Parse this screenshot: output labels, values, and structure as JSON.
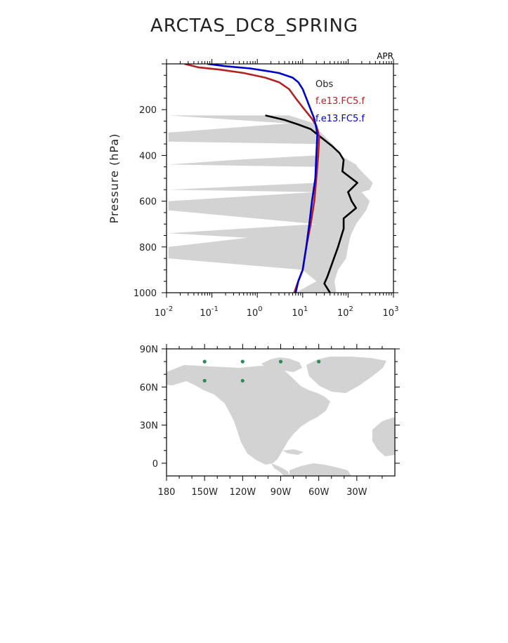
{
  "page_title": "ARCTAS_DC8_SPRING",
  "chart_data": [
    {
      "type": "line",
      "corner_label": "APR",
      "ylabel": "Pressure (hPa)",
      "xlabel": "",
      "x_scale": "log",
      "xlim": [
        0.01,
        1000
      ],
      "ylim": [
        1000,
        0
      ],
      "y_reversed": true,
      "x_tick_values": [
        0.01,
        0.1,
        1,
        10,
        100,
        1000
      ],
      "x_tick_labels": [
        {
          "base": "10",
          "exp": "-2"
        },
        {
          "base": "10",
          "exp": "-1"
        },
        {
          "base": "10",
          "exp": "0"
        },
        {
          "base": "10",
          "exp": "1"
        },
        {
          "base": "10",
          "exp": "2"
        },
        {
          "base": "10",
          "exp": "3"
        }
      ],
      "y_ticks": [
        200,
        400,
        600,
        800,
        1000
      ],
      "legend": [
        "Obs",
        "f.e13.FC5.f",
        "f.e13.FC5.f"
      ],
      "legend_position": "top-right",
      "colors": {
        "obs": "#000000",
        "model1": "#b22222",
        "model2": "#0000cc",
        "range": "#d3d3d3"
      },
      "obs_range": {
        "pressure": [
          225,
          260,
          300,
          340,
          350,
          400,
          420,
          440,
          450,
          520,
          550,
          560,
          600,
          640,
          700,
          740,
          760,
          800,
          850,
          900,
          950,
          1000
        ],
        "min": [
          0.011,
          5,
          0.011,
          0.011,
          20,
          20,
          0.3,
          0.011,
          20,
          20,
          0.011,
          20,
          0.011,
          0.011,
          20,
          0.011,
          0.6,
          0.011,
          0.011,
          10,
          20,
          7
        ],
        "max": [
          5,
          18,
          25,
          40,
          45,
          70,
          100,
          150,
          160,
          350,
          300,
          200,
          300,
          250,
          150,
          120,
          110,
          100,
          90,
          60,
          50,
          55
        ]
      },
      "series": [
        {
          "name": "Obs",
          "pressure": [
            225,
            245,
            265,
            285,
            305,
            360,
            390,
            420,
            470,
            520,
            560,
            600,
            630,
            675,
            720,
            800,
            930,
            960,
            1000
          ],
          "values": [
            1.5,
            4,
            8,
            15,
            20,
            45,
            65,
            80,
            75,
            160,
            100,
            120,
            150,
            80,
            80,
            60,
            35,
            30,
            40
          ]
        },
        {
          "name": "f.e13.FC5.f",
          "pressure": [
            0,
            15,
            25,
            40,
            60,
            80,
            110,
            150,
            200,
            240,
            270,
            300,
            320,
            400,
            500,
            600,
            700,
            800,
            900,
            950,
            1000
          ],
          "values": [
            0.025,
            0.05,
            0.15,
            0.5,
            1.5,
            3,
            5,
            7,
            11,
            16,
            20,
            22,
            23,
            22,
            20,
            18,
            15,
            12,
            10,
            8,
            6.5
          ]
        },
        {
          "name": "f.e13.FC5.f",
          "pressure": [
            0,
            10,
            20,
            30,
            40,
            60,
            80,
            110,
            150,
            200,
            240,
            280,
            310,
            400,
            500,
            600,
            700,
            800,
            900,
            950,
            1000
          ],
          "values": [
            0.08,
            0.2,
            0.7,
            1.5,
            3,
            6,
            8,
            10,
            12,
            15,
            18,
            20,
            21,
            20,
            19,
            16,
            14,
            12,
            10,
            8,
            7
          ]
        }
      ]
    },
    {
      "type": "scatter",
      "xlim": [
        -180,
        0
      ],
      "ylim": [
        -10,
        90
      ],
      "x_ticks": [
        -180,
        -150,
        -120,
        -90,
        -60,
        -30
      ],
      "x_tick_labels": [
        "180",
        "150W",
        "120W",
        "90W",
        "60W",
        "30W"
      ],
      "y_ticks": [
        0,
        30,
        60,
        90
      ],
      "y_tick_labels": [
        "0",
        "30N",
        "60N",
        "90N"
      ],
      "colors": {
        "points": "#2e8b57",
        "land": "#d3d3d3"
      },
      "points": [
        {
          "lon": -150,
          "lat": 80
        },
        {
          "lon": -120,
          "lat": 80
        },
        {
          "lon": -90,
          "lat": 80
        },
        {
          "lon": -60,
          "lat": 80
        },
        {
          "lon": -150,
          "lat": 65
        },
        {
          "lon": -120,
          "lat": 65
        }
      ]
    }
  ]
}
